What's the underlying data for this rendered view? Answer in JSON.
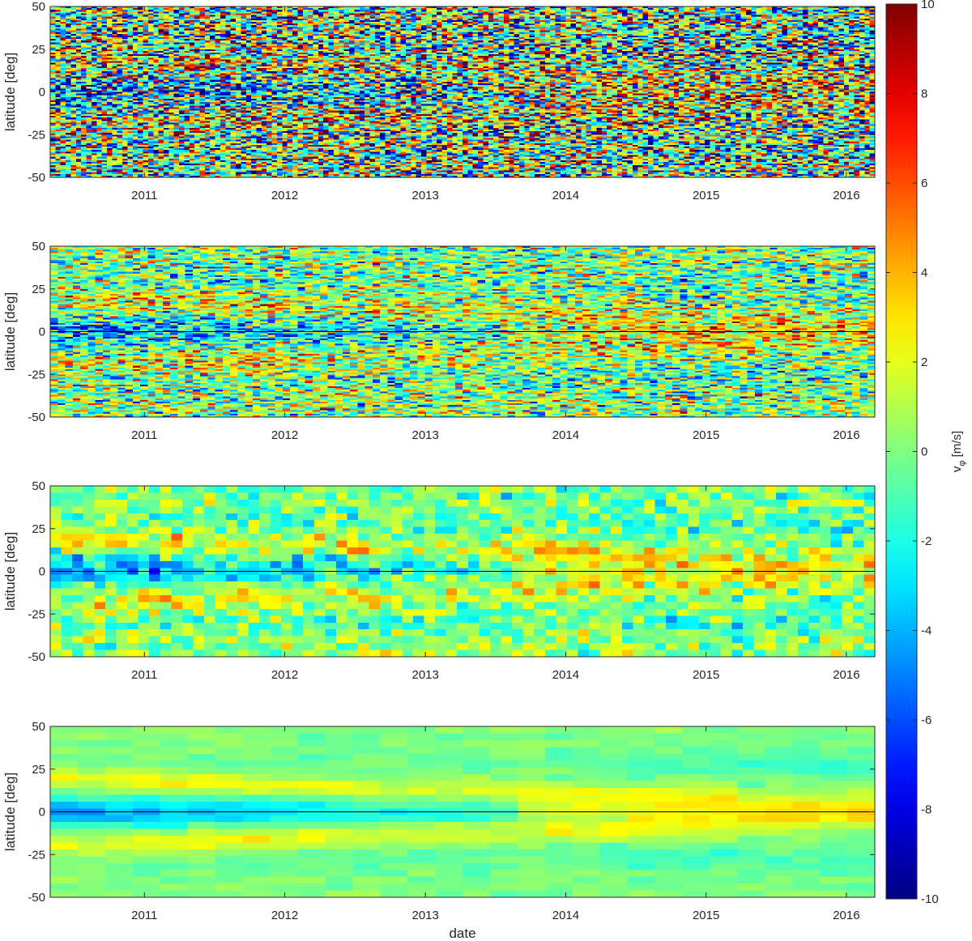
{
  "chart_data": {
    "type": "heatmap",
    "colormap": "jet",
    "panels": [
      {
        "name": "panel-1",
        "xlabel": "",
        "ylabel": "latitude [deg]",
        "ylim": [
          -50,
          50
        ],
        "yticks": [
          -50,
          -25,
          0,
          25,
          50
        ],
        "xlim": [
          "2010-05-01",
          "2016-03-15"
        ],
        "xticks": [
          "2011",
          "2012",
          "2013",
          "2014",
          "2015",
          "2016"
        ],
        "equator_line": false,
        "time_bins": 160,
        "lat_bins": 100,
        "noise": 5.5,
        "smoothing": "none"
      },
      {
        "name": "panel-2",
        "xlabel": "",
        "ylabel": "latitude [deg]",
        "ylim": [
          -50,
          50
        ],
        "yticks": [
          -50,
          -25,
          0,
          25,
          50
        ],
        "xlim": [
          "2010-05-01",
          "2016-03-15"
        ],
        "xticks": [
          "2011",
          "2012",
          "2013",
          "2014",
          "2015",
          "2016"
        ],
        "equator_line": true,
        "time_bins": 110,
        "lat_bins": 100,
        "noise": 3.2,
        "smoothing": "low"
      },
      {
        "name": "panel-3",
        "xlabel": "",
        "ylabel": "latitude [deg]",
        "ylim": [
          -50,
          50
        ],
        "yticks": [
          -50,
          -25,
          0,
          25,
          50
        ],
        "xlim": [
          "2010-05-01",
          "2016-03-15"
        ],
        "xticks": [
          "2011",
          "2012",
          "2013",
          "2014",
          "2015",
          "2016"
        ],
        "equator_line": true,
        "time_bins": 75,
        "lat_bins": 25,
        "noise": 1.6,
        "smoothing": "medium"
      },
      {
        "name": "panel-4",
        "xlabel": "date",
        "ylabel": "latitude [deg]",
        "ylim": [
          -50,
          50
        ],
        "yticks": [
          -50,
          -25,
          0,
          25,
          50
        ],
        "xlim": [
          "2010-05-01",
          "2016-03-15"
        ],
        "xticks": [
          "2011",
          "2012",
          "2013",
          "2014",
          "2015",
          "2016"
        ],
        "equator_line": true,
        "time_bins": 30,
        "lat_bins": 25,
        "noise": 0.4,
        "smoothing": "high"
      }
    ],
    "colorbar": {
      "label": "v_φ [m/s]",
      "label_main": "v",
      "label_sub": "φ",
      "label_unit": "[m/s]",
      "limits": [
        -10,
        10
      ],
      "ticks": [
        -10,
        -8,
        -6,
        -4,
        -2,
        0,
        2,
        4,
        6,
        8,
        10
      ]
    }
  }
}
